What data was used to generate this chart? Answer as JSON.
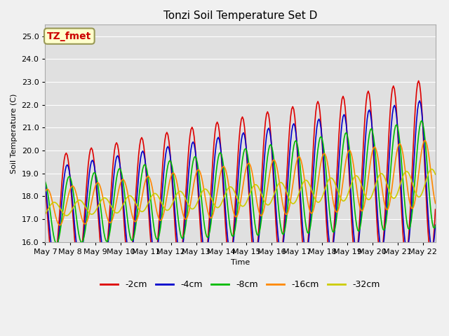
{
  "title": "Tonzi Soil Temperature Set D",
  "xlabel": "Time",
  "ylabel": "Soil Temperature (C)",
  "ylim": [
    16.0,
    25.5
  ],
  "xlim_days": [
    0,
    15.5
  ],
  "xtick_labels": [
    "May 7",
    "May 8",
    "May 9",
    "May 10",
    "May 11",
    "May 12",
    "May 13",
    "May 14",
    "May 15",
    "May 16",
    "May 17",
    "May 18",
    "May 19",
    "May 20",
    "May 21",
    "May 22"
  ],
  "xtick_positions": [
    0,
    1,
    2,
    3,
    4,
    5,
    6,
    7,
    8,
    9,
    10,
    11,
    12,
    13,
    14,
    15
  ],
  "series": [
    {
      "label": "-2cm",
      "color": "#dd0000",
      "lw": 1.2
    },
    {
      "label": "-4cm",
      "color": "#0000cc",
      "lw": 1.2
    },
    {
      "label": "-8cm",
      "color": "#00bb00",
      "lw": 1.2
    },
    {
      "label": "-16cm",
      "color": "#ff8800",
      "lw": 1.2
    },
    {
      "label": "-32cm",
      "color": "#cccc00",
      "lw": 1.2
    }
  ],
  "annotation_text": "TZ_fmet",
  "annotation_color": "#cc0000",
  "annotation_bg": "#ffffcc",
  "annotation_border": "#999955",
  "fig_bg": "#f0f0f0",
  "plot_bg": "#e0e0e0",
  "title_fontsize": 11,
  "legend_fontsize": 9,
  "axis_fontsize": 8
}
